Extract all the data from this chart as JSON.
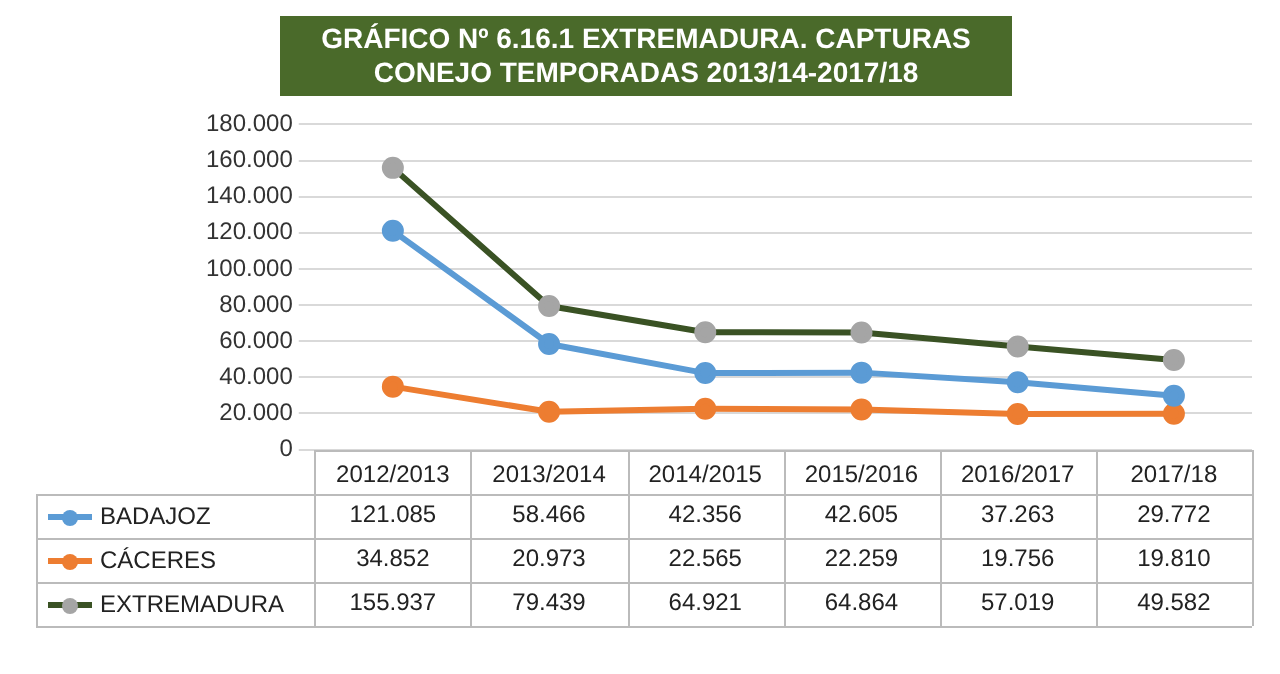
{
  "chart_data": {
    "type": "line",
    "title": "GRÁFICO Nº 6.16.1 EXTREMADURA. CAPTURAS CONEJO TEMPORADAS 2013/14-2017/18",
    "categories": [
      "2012/2013",
      "2013/2014",
      "2014/2015",
      "2015/2016",
      "2016/2017",
      "2017/18"
    ],
    "series": [
      {
        "name": "BADAJOZ",
        "color": "#5b9bd5",
        "values": [
          121085,
          58466,
          42356,
          42605,
          37263,
          29772
        ],
        "value_labels": [
          "121.085",
          "58.466",
          "42.356",
          "42.605",
          "37.263",
          "29.772"
        ]
      },
      {
        "name": "CÁCERES",
        "color": "#ed7d31",
        "values": [
          34852,
          20973,
          22565,
          22259,
          19756,
          19810
        ],
        "value_labels": [
          "34.852",
          "20.973",
          "22.565",
          "22.259",
          "19.756",
          "19.810"
        ]
      },
      {
        "name": "EXTREMADURA",
        "color": "#3a5224",
        "values": [
          155937,
          79439,
          64921,
          64864,
          57019,
          49582
        ],
        "value_labels": [
          "155.937",
          "79.439",
          "64.921",
          "64.864",
          "57.019",
          "49.582"
        ]
      }
    ],
    "ylim": [
      0,
      180000
    ],
    "yticks": [
      {
        "value": 0,
        "label": "0"
      },
      {
        "value": 20000,
        "label": "20.000"
      },
      {
        "value": 40000,
        "label": "40.000"
      },
      {
        "value": 60000,
        "label": "60.000"
      },
      {
        "value": 80000,
        "label": "80.000"
      },
      {
        "value": 100000,
        "label": "100.000"
      },
      {
        "value": 120000,
        "label": "120.000"
      },
      {
        "value": 140000,
        "label": "140.000"
      },
      {
        "value": 160000,
        "label": "160.000"
      },
      {
        "value": 180000,
        "label": "180.000"
      }
    ],
    "grid": "y",
    "marker": "circle",
    "legend": "bottom"
  }
}
